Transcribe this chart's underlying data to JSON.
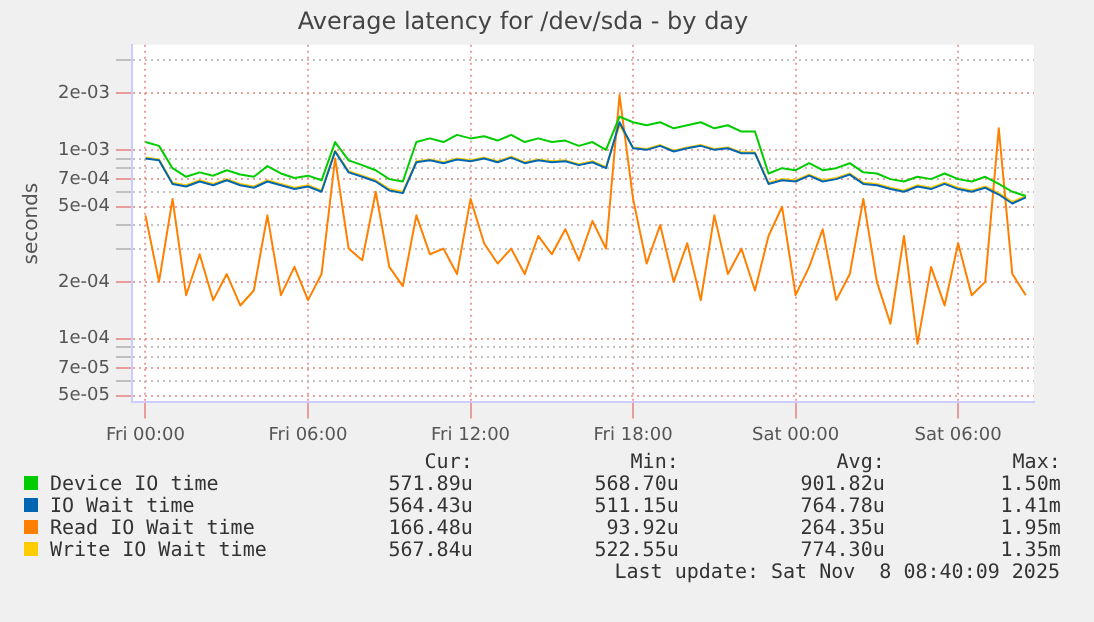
{
  "chart_data": {
    "type": "line",
    "title": "Average latency for /dev/sda - by day",
    "ylabel": "seconds",
    "log": "y",
    "grid": true,
    "legend": "bottom",
    "marker": "none",
    "x": [
      "2025-11-07T00:00",
      "2025-11-07T00:30",
      "2025-11-07T01:00",
      "2025-11-07T01:30",
      "2025-11-07T02:00",
      "2025-11-07T02:30",
      "2025-11-07T03:00",
      "2025-11-07T03:30",
      "2025-11-07T04:00",
      "2025-11-07T04:30",
      "2025-11-07T05:00",
      "2025-11-07T05:30",
      "2025-11-07T06:00",
      "2025-11-07T06:30",
      "2025-11-07T07:00",
      "2025-11-07T07:30",
      "2025-11-07T08:00",
      "2025-11-07T08:30",
      "2025-11-07T09:00",
      "2025-11-07T09:30",
      "2025-11-07T10:00",
      "2025-11-07T10:30",
      "2025-11-07T11:00",
      "2025-11-07T11:30",
      "2025-11-07T12:00",
      "2025-11-07T12:30",
      "2025-11-07T13:00",
      "2025-11-07T13:30",
      "2025-11-07T14:00",
      "2025-11-07T14:30",
      "2025-11-07T15:00",
      "2025-11-07T15:30",
      "2025-11-07T16:00",
      "2025-11-07T16:30",
      "2025-11-07T17:00",
      "2025-11-07T17:30",
      "2025-11-07T18:00",
      "2025-11-07T18:30",
      "2025-11-07T19:00",
      "2025-11-07T19:30",
      "2025-11-07T20:00",
      "2025-11-07T20:30",
      "2025-11-07T21:00",
      "2025-11-07T21:30",
      "2025-11-07T22:00",
      "2025-11-07T22:30",
      "2025-11-07T23:00",
      "2025-11-07T23:30",
      "2025-11-08T00:00",
      "2025-11-08T00:30",
      "2025-11-08T01:00",
      "2025-11-08T01:30",
      "2025-11-08T02:00",
      "2025-11-08T02:30",
      "2025-11-08T03:00",
      "2025-11-08T03:30",
      "2025-11-08T04:00",
      "2025-11-08T04:30",
      "2025-11-08T05:00",
      "2025-11-08T05:30",
      "2025-11-08T06:00",
      "2025-11-08T06:30",
      "2025-11-08T07:00",
      "2025-11-08T07:30",
      "2025-11-08T08:00",
      "2025-11-08T08:30"
    ],
    "xlim": [
      "2025-11-06T23:30",
      "2025-11-08T08:48"
    ],
    "xticks": [
      {
        "value": "2025-11-07T00:00",
        "label": "Fri 00:00"
      },
      {
        "value": "2025-11-07T06:00",
        "label": "Fri 06:00"
      },
      {
        "value": "2025-11-07T12:00",
        "label": "Fri 12:00"
      },
      {
        "value": "2025-11-07T18:00",
        "label": "Fri 18:00"
      },
      {
        "value": "2025-11-08T00:00",
        "label": "Sat 00:00"
      },
      {
        "value": "2025-11-08T06:00",
        "label": "Sat 06:00"
      }
    ],
    "ylim": [
      4.6e-05,
      0.0036
    ],
    "yticks": [
      {
        "value": 5e-05,
        "label": "5e-05"
      },
      {
        "value": 6e-05,
        "label": null
      },
      {
        "value": 7e-05,
        "label": "7e-05"
      },
      {
        "value": 8e-05,
        "label": null
      },
      {
        "value": 9e-05,
        "label": null
      },
      {
        "value": 0.0001,
        "label": "1e-04"
      },
      {
        "value": 0.0002,
        "label": "2e-04"
      },
      {
        "value": 0.0003,
        "label": null
      },
      {
        "value": 0.0004,
        "label": null
      },
      {
        "value": 0.0005,
        "label": "5e-04"
      },
      {
        "value": 0.0006,
        "label": null
      },
      {
        "value": 0.0007,
        "label": "7e-04"
      },
      {
        "value": 0.0008,
        "label": null
      },
      {
        "value": 0.0009,
        "label": null
      },
      {
        "value": 0.001,
        "label": "1e-03"
      },
      {
        "value": 0.002,
        "label": "2e-03"
      },
      {
        "value": 0.003,
        "label": null
      }
    ],
    "series": [
      {
        "name": "Device IO time",
        "color": "#00cc00",
        "values": [
          0.0011,
          0.00105,
          0.0008,
          0.00072,
          0.00076,
          0.00073,
          0.00078,
          0.00074,
          0.00072,
          0.00082,
          0.00075,
          0.00071,
          0.00073,
          0.00069,
          0.0011,
          0.00088,
          0.00083,
          0.00078,
          0.0007,
          0.00068,
          0.0011,
          0.00115,
          0.0011,
          0.0012,
          0.00115,
          0.00118,
          0.00112,
          0.0012,
          0.0011,
          0.00115,
          0.0011,
          0.00112,
          0.00105,
          0.0011,
          0.001,
          0.0015,
          0.0014,
          0.00135,
          0.0014,
          0.0013,
          0.00135,
          0.0014,
          0.0013,
          0.00135,
          0.00125,
          0.00125,
          0.00075,
          0.0008,
          0.00078,
          0.00085,
          0.00078,
          0.0008,
          0.00085,
          0.00076,
          0.00075,
          0.0007,
          0.00068,
          0.00072,
          0.0007,
          0.00075,
          0.0007,
          0.00068,
          0.00072,
          0.00066,
          0.0006,
          0.00057
        ]
      },
      {
        "name": "IO Wait time",
        "color": "#0066b3",
        "values": [
          0.0009,
          0.00088,
          0.00066,
          0.00064,
          0.00068,
          0.00065,
          0.00069,
          0.00065,
          0.00063,
          0.00068,
          0.00065,
          0.00062,
          0.00064,
          0.0006,
          0.00098,
          0.00076,
          0.00072,
          0.00068,
          0.00061,
          0.00059,
          0.00086,
          0.00088,
          0.00085,
          0.00089,
          0.00087,
          0.0009,
          0.00086,
          0.00091,
          0.00085,
          0.00088,
          0.00086,
          0.00087,
          0.00083,
          0.00086,
          0.0008,
          0.0014,
          0.00102,
          0.001,
          0.00105,
          0.00098,
          0.00102,
          0.00105,
          0.001,
          0.00102,
          0.00096,
          0.00096,
          0.00066,
          0.00069,
          0.00068,
          0.00073,
          0.00068,
          0.0007,
          0.00074,
          0.00066,
          0.00065,
          0.00062,
          0.0006,
          0.00064,
          0.00062,
          0.00066,
          0.00062,
          0.0006,
          0.00063,
          0.00058,
          0.00052,
          0.00056
        ]
      },
      {
        "name": "Read IO Wait time",
        "color": "#ff8000",
        "values": [
          0.00045,
          0.0002,
          0.00055,
          0.00017,
          0.00028,
          0.00016,
          0.00022,
          0.00015,
          0.00018,
          0.00045,
          0.00017,
          0.00024,
          0.00016,
          0.00022,
          0.0009,
          0.0003,
          0.00026,
          0.0006,
          0.00024,
          0.00019,
          0.00045,
          0.00028,
          0.0003,
          0.00022,
          0.00055,
          0.00032,
          0.00025,
          0.0003,
          0.00022,
          0.00035,
          0.00028,
          0.00038,
          0.00026,
          0.00042,
          0.0003,
          0.00195,
          0.00055,
          0.00025,
          0.0004,
          0.0002,
          0.00032,
          0.00016,
          0.00045,
          0.00022,
          0.0003,
          0.00018,
          0.00035,
          0.0005,
          0.00017,
          0.00024,
          0.00038,
          0.00016,
          0.00022,
          0.00055,
          0.0002,
          0.00012,
          0.00035,
          9.4e-05,
          0.00024,
          0.00015,
          0.00032,
          0.00017,
          0.0002,
          0.0013,
          0.00022,
          0.00017
        ]
      },
      {
        "name": "Write IO Wait time",
        "color": "#ffcc00",
        "values": [
          0.00091,
          0.00089,
          0.00067,
          0.00065,
          0.00069,
          0.00066,
          0.0007,
          0.00066,
          0.00064,
          0.00069,
          0.00066,
          0.00063,
          0.00065,
          0.00061,
          0.00099,
          0.00077,
          0.00073,
          0.00069,
          0.00062,
          0.0006,
          0.00087,
          0.00089,
          0.00086,
          0.0009,
          0.00088,
          0.00091,
          0.00087,
          0.00092,
          0.00086,
          0.00089,
          0.00087,
          0.00088,
          0.00084,
          0.00087,
          0.00081,
          0.00135,
          0.00103,
          0.00101,
          0.00106,
          0.00099,
          0.00103,
          0.00106,
          0.00101,
          0.00103,
          0.00097,
          0.00097,
          0.00067,
          0.0007,
          0.00069,
          0.00074,
          0.00069,
          0.00071,
          0.00075,
          0.00067,
          0.00066,
          0.00063,
          0.00061,
          0.00065,
          0.00063,
          0.00067,
          0.00063,
          0.00061,
          0.00064,
          0.00059,
          0.00053,
          0.00057
        ]
      }
    ],
    "annotations": [
      "Cur:",
      "Min:",
      "Avg:",
      "Max:",
      "571.89u",
      "568.70u",
      "901.82u",
      "1.50m",
      "564.43u",
      "511.15u",
      "764.78u",
      "1.41m",
      "166.48u",
      "93.92u",
      "264.35u",
      "1.95m",
      "567.84u",
      "522.55u",
      "774.30u",
      "1.35m",
      "Last update: Sat Nov  8 08:40:09 2025"
    ]
  }
}
